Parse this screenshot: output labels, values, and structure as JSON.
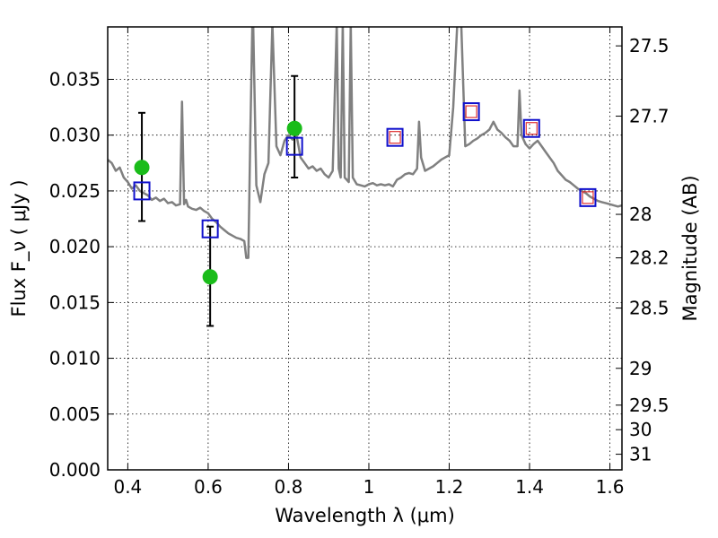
{
  "chart_data": {
    "type": "scatter",
    "xlabel": "Wavelength  λ (μm)",
    "ylabel": "Flux  F_ν  ( μJy )",
    "y2label": "Magnitude (AB)",
    "xlim": [
      0.35,
      1.63
    ],
    "ylim": [
      0.0,
      0.0397
    ],
    "grid": true,
    "x_ticks": [
      0.4,
      0.6,
      0.8,
      1.0,
      1.2,
      1.4,
      1.6
    ],
    "x_tick_labels": [
      "0.4",
      "0.6",
      "0.8",
      "1",
      "1.2",
      "1.4",
      "1.6"
    ],
    "y_ticks": [
      0.0,
      0.005,
      0.01,
      0.015,
      0.02,
      0.025,
      0.03,
      0.035
    ],
    "y_tick_labels": [
      "0.000",
      "0.005",
      "0.010",
      "0.015",
      "0.020",
      "0.025",
      "0.030",
      "0.035"
    ],
    "y2_ticks": [
      {
        "flux": 0.038,
        "label": "27.5"
      },
      {
        "flux": 0.0317,
        "label": "27.7"
      },
      {
        "flux": 0.0229,
        "label": "28"
      },
      {
        "flux": 0.019,
        "label": "28.2"
      },
      {
        "flux": 0.0145,
        "label": "28.5"
      },
      {
        "flux": 0.0091,
        "label": "29"
      },
      {
        "flux": 0.0058,
        "label": "29.5"
      },
      {
        "flux": 0.0036,
        "label": "30"
      },
      {
        "flux": 0.0014,
        "label": "31"
      }
    ],
    "series": [
      {
        "style": "line",
        "color": "#808080",
        "x": [
          0.35,
          0.36,
          0.37,
          0.38,
          0.39,
          0.4,
          0.41,
          0.42,
          0.43,
          0.44,
          0.45,
          0.46,
          0.47,
          0.48,
          0.49,
          0.5,
          0.51,
          0.52,
          0.53,
          0.535,
          0.54,
          0.545,
          0.55,
          0.56,
          0.57,
          0.58,
          0.59,
          0.6,
          0.61,
          0.62,
          0.63,
          0.64,
          0.65,
          0.66,
          0.67,
          0.68,
          0.69,
          0.695,
          0.7,
          0.705,
          0.71,
          0.712,
          0.72,
          0.73,
          0.74,
          0.75,
          0.76,
          0.77,
          0.78,
          0.79,
          0.8,
          0.81,
          0.82,
          0.83,
          0.84,
          0.85,
          0.86,
          0.87,
          0.88,
          0.89,
          0.9,
          0.91,
          0.92,
          0.925,
          0.93,
          0.935,
          0.94,
          0.95,
          0.955,
          0.96,
          0.97,
          0.98,
          0.99,
          1.0,
          1.01,
          1.02,
          1.03,
          1.04,
          1.05,
          1.06,
          1.07,
          1.08,
          1.09,
          1.1,
          1.11,
          1.12,
          1.125,
          1.13,
          1.14,
          1.15,
          1.16,
          1.17,
          1.18,
          1.19,
          1.2,
          1.21,
          1.22,
          1.23,
          1.24,
          1.25,
          1.26,
          1.27,
          1.28,
          1.29,
          1.3,
          1.31,
          1.32,
          1.33,
          1.34,
          1.35,
          1.36,
          1.37,
          1.375,
          1.38,
          1.39,
          1.4,
          1.41,
          1.42,
          1.43,
          1.44,
          1.45,
          1.46,
          1.47,
          1.48,
          1.49,
          1.5,
          1.51,
          1.52,
          1.53,
          1.54,
          1.55,
          1.56,
          1.57,
          1.58,
          1.59,
          1.6,
          1.61,
          1.62,
          1.63
        ],
        "y": [
          0.0278,
          0.0275,
          0.0268,
          0.0271,
          0.0262,
          0.0258,
          0.0252,
          0.0255,
          0.025,
          0.0248,
          0.0246,
          0.0242,
          0.0244,
          0.0241,
          0.0243,
          0.0239,
          0.024,
          0.0237,
          0.0238,
          0.033,
          0.0238,
          0.0242,
          0.0236,
          0.0234,
          0.0233,
          0.0235,
          0.0232,
          0.023,
          0.0225,
          0.0222,
          0.0218,
          0.0215,
          0.0212,
          0.021,
          0.0208,
          0.0207,
          0.0205,
          0.019,
          0.019,
          0.03,
          0.04,
          0.04,
          0.0255,
          0.024,
          0.0265,
          0.0275,
          0.04,
          0.029,
          0.0282,
          0.0295,
          0.03,
          0.0296,
          0.03,
          0.028,
          0.0275,
          0.027,
          0.0272,
          0.0268,
          0.027,
          0.0265,
          0.0262,
          0.0268,
          0.04,
          0.027,
          0.0262,
          0.04,
          0.0262,
          0.0258,
          0.04,
          0.0262,
          0.0256,
          0.0255,
          0.0254,
          0.0256,
          0.0257,
          0.0255,
          0.0256,
          0.0255,
          0.0256,
          0.0254,
          0.026,
          0.0262,
          0.0265,
          0.0266,
          0.0265,
          0.027,
          0.0312,
          0.028,
          0.0268,
          0.027,
          0.0272,
          0.0275,
          0.0278,
          0.028,
          0.0282,
          0.0325,
          0.04,
          0.04,
          0.029,
          0.0292,
          0.0295,
          0.0297,
          0.03,
          0.0302,
          0.0305,
          0.0312,
          0.0305,
          0.0302,
          0.0298,
          0.0295,
          0.029,
          0.029,
          0.034,
          0.03,
          0.0292,
          0.0288,
          0.0292,
          0.0295,
          0.029,
          0.0285,
          0.028,
          0.0275,
          0.0268,
          0.0264,
          0.026,
          0.0258,
          0.0255,
          0.0252,
          0.025,
          0.0248,
          0.0245,
          0.0243,
          0.0241,
          0.024,
          0.0239,
          0.0238,
          0.0237,
          0.0236,
          0.0237
        ]
      },
      {
        "style": "filled-circle",
        "color": "#1abc1a",
        "points": [
          {
            "x": 0.435,
            "y": 0.0271,
            "err": [
              0.0223,
              0.032
            ]
          },
          {
            "x": 0.605,
            "y": 0.0173,
            "err": [
              0.0129,
              0.0218
            ]
          },
          {
            "x": 0.815,
            "y": 0.0306,
            "err": [
              0.0262,
              0.0353
            ]
          }
        ]
      },
      {
        "style": "open-square",
        "color": "#1010cc",
        "x": [
          0.435,
          0.605,
          0.815,
          1.065,
          1.255,
          1.405,
          1.545
        ],
        "y": [
          0.025,
          0.0216,
          0.029,
          0.0298,
          0.0321,
          0.0306,
          0.0244
        ]
      },
      {
        "style": "open-square-small",
        "color": "#e03030",
        "x": [
          1.065,
          1.255,
          1.405,
          1.545
        ],
        "y": [
          0.0298,
          0.0321,
          0.0306,
          0.0244
        ]
      }
    ]
  }
}
